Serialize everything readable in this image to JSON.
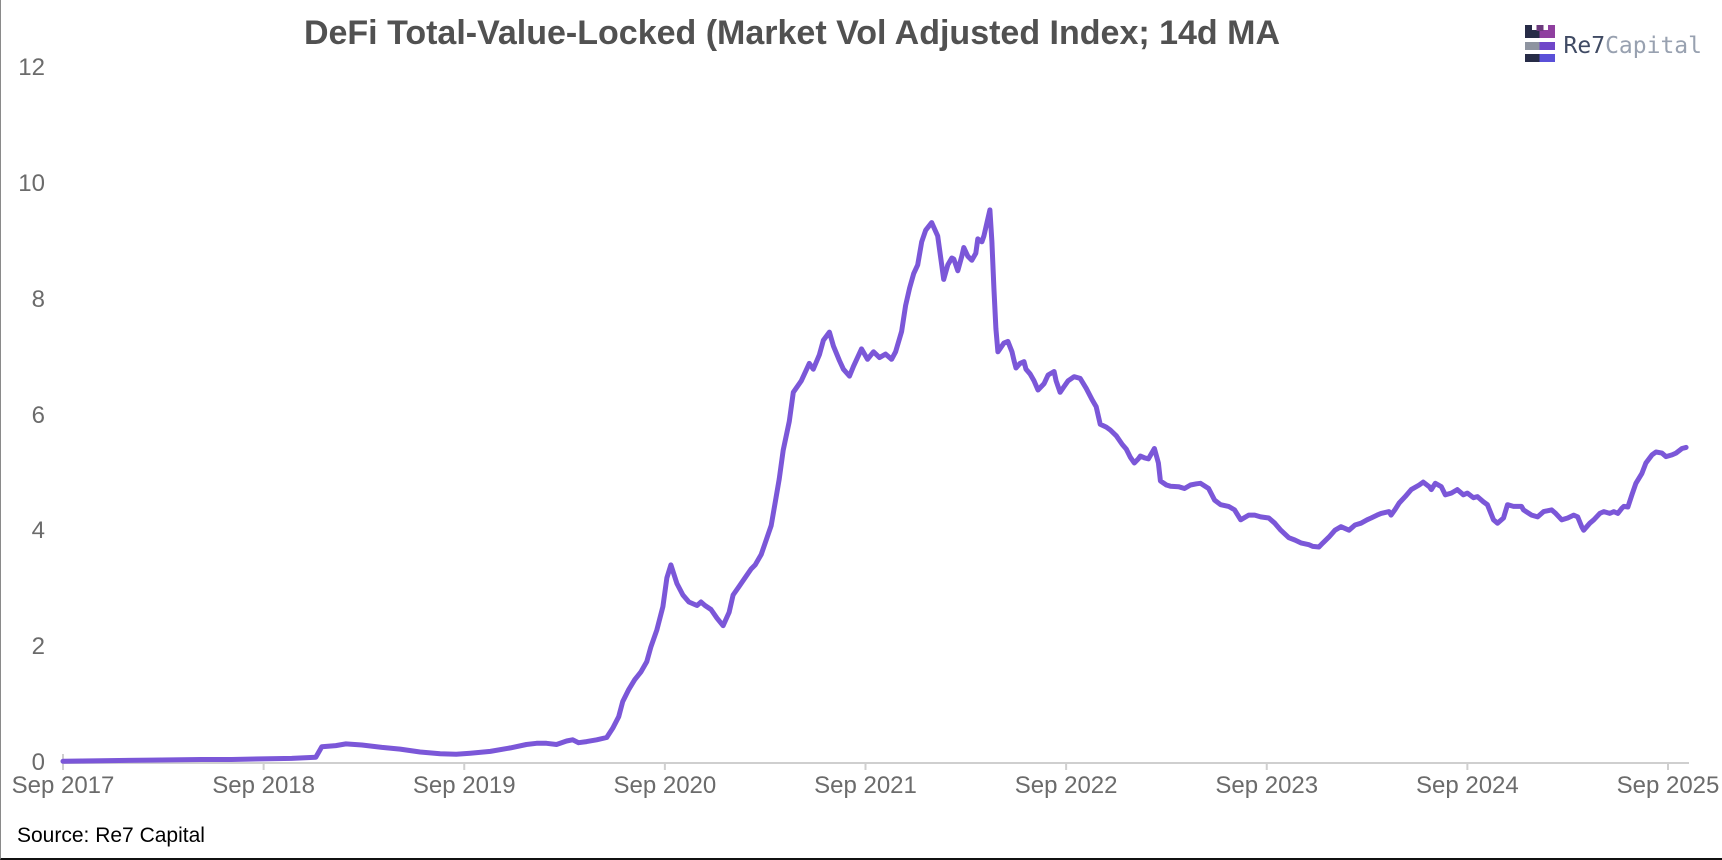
{
  "page": {
    "background": "#ffffff",
    "border_bottom_color": "#111111",
    "border_left_color": "#8a8a8a"
  },
  "header": {
    "title": "DeFi Total-Value-Locked (Market Vol Adjusted Index; 14d MA",
    "title_color": "#515151"
  },
  "logo": {
    "text_primary": "Re7",
    "text_secondary": "Capital",
    "primary_color": "#3f4a63",
    "secondary_color": "#98a1b0",
    "icon": {
      "name": "re7-capital-castle-bars-icon",
      "dark_navy": "#272c47",
      "gray": "#8e94a0",
      "magenta_purple": "#8f3f9f",
      "mid_purple": "#6f46c9",
      "indigo": "#5a50d8"
    }
  },
  "footer": {
    "source_label": "Source: Re7 Capital"
  },
  "chart_data": {
    "type": "line",
    "title": "DeFi Total-Value-Locked (Market Vol Adjusted Index; 14d MA",
    "series_name": "DeFi TVL market-vol-adjusted index (14d MA)",
    "line_color": "#7b57d8",
    "line_width": 5,
    "grid": false,
    "legend": false,
    "axis_color": "#cfcfcf",
    "x_axis": {
      "domain": [
        2017.75,
        2025.87
      ],
      "tick_values": [
        2017.75,
        2018.75,
        2019.75,
        2020.75,
        2021.75,
        2022.75,
        2023.75,
        2024.75,
        2025.75
      ],
      "tick_labels": [
        "Sep 2017",
        "Sep 2018",
        "Sep 2019",
        "Sep 2020",
        "Sep 2021",
        "Sep 2022",
        "Sep 2023",
        "Sep 2024",
        "Sep 2025"
      ]
    },
    "y_axis": {
      "domain": [
        0,
        12
      ],
      "tick_values": [
        0,
        2,
        4,
        6,
        8,
        10,
        12
      ]
    },
    "points": [
      [
        2017.75,
        0.03
      ],
      [
        2017.94,
        0.04
      ],
      [
        2018.19,
        0.05
      ],
      [
        2018.44,
        0.06
      ],
      [
        2018.59,
        0.06
      ],
      [
        2018.74,
        0.07
      ],
      [
        2018.89,
        0.08
      ],
      [
        2019.01,
        0.1
      ],
      [
        2019.04,
        0.28
      ],
      [
        2019.11,
        0.3
      ],
      [
        2019.16,
        0.33
      ],
      [
        2019.24,
        0.31
      ],
      [
        2019.34,
        0.27
      ],
      [
        2019.43,
        0.24
      ],
      [
        2019.53,
        0.19
      ],
      [
        2019.63,
        0.16
      ],
      [
        2019.71,
        0.15
      ],
      [
        2019.78,
        0.17
      ],
      [
        2019.88,
        0.2
      ],
      [
        2019.98,
        0.26
      ],
      [
        2020.06,
        0.32
      ],
      [
        2020.11,
        0.34
      ],
      [
        2020.16,
        0.34
      ],
      [
        2020.21,
        0.32
      ],
      [
        2020.26,
        0.38
      ],
      [
        2020.29,
        0.4
      ],
      [
        2020.32,
        0.35
      ],
      [
        2020.36,
        0.37
      ],
      [
        2020.41,
        0.4
      ],
      [
        2020.46,
        0.44
      ],
      [
        2020.49,
        0.6
      ],
      [
        2020.52,
        0.8
      ],
      [
        2020.54,
        1.06
      ],
      [
        2020.57,
        1.27
      ],
      [
        2020.6,
        1.44
      ],
      [
        2020.63,
        1.57
      ],
      [
        2020.66,
        1.75
      ],
      [
        2020.68,
        2.0
      ],
      [
        2020.71,
        2.3
      ],
      [
        2020.74,
        2.7
      ],
      [
        2020.76,
        3.2
      ],
      [
        2020.78,
        3.42
      ],
      [
        2020.81,
        3.1
      ],
      [
        2020.84,
        2.9
      ],
      [
        2020.87,
        2.78
      ],
      [
        2020.91,
        2.72
      ],
      [
        2020.93,
        2.78
      ],
      [
        2020.95,
        2.72
      ],
      [
        2020.98,
        2.65
      ],
      [
        2021.01,
        2.5
      ],
      [
        2021.04,
        2.37
      ],
      [
        2021.07,
        2.6
      ],
      [
        2021.09,
        2.9
      ],
      [
        2021.12,
        3.05
      ],
      [
        2021.15,
        3.2
      ],
      [
        2021.18,
        3.35
      ],
      [
        2021.2,
        3.42
      ],
      [
        2021.23,
        3.6
      ],
      [
        2021.25,
        3.8
      ],
      [
        2021.28,
        4.1
      ],
      [
        2021.3,
        4.5
      ],
      [
        2021.32,
        4.9
      ],
      [
        2021.34,
        5.4
      ],
      [
        2021.37,
        5.9
      ],
      [
        2021.39,
        6.4
      ],
      [
        2021.43,
        6.6
      ],
      [
        2021.47,
        6.9
      ],
      [
        2021.49,
        6.8
      ],
      [
        2021.52,
        7.05
      ],
      [
        2021.54,
        7.3
      ],
      [
        2021.57,
        7.44
      ],
      [
        2021.59,
        7.2
      ],
      [
        2021.62,
        6.95
      ],
      [
        2021.64,
        6.8
      ],
      [
        2021.67,
        6.68
      ],
      [
        2021.69,
        6.85
      ],
      [
        2021.73,
        7.15
      ],
      [
        2021.76,
        6.97
      ],
      [
        2021.79,
        7.1
      ],
      [
        2021.82,
        7.0
      ],
      [
        2021.85,
        7.06
      ],
      [
        2021.88,
        6.97
      ],
      [
        2021.9,
        7.1
      ],
      [
        2021.93,
        7.45
      ],
      [
        2021.95,
        7.9
      ],
      [
        2021.97,
        8.2
      ],
      [
        2021.99,
        8.45
      ],
      [
        2022.01,
        8.6
      ],
      [
        2022.03,
        9.0
      ],
      [
        2022.05,
        9.2
      ],
      [
        2022.08,
        9.33
      ],
      [
        2022.11,
        9.1
      ],
      [
        2022.13,
        8.6
      ],
      [
        2022.14,
        8.35
      ],
      [
        2022.16,
        8.6
      ],
      [
        2022.18,
        8.72
      ],
      [
        2022.19,
        8.7
      ],
      [
        2022.21,
        8.5
      ],
      [
        2022.23,
        8.75
      ],
      [
        2022.24,
        8.9
      ],
      [
        2022.26,
        8.75
      ],
      [
        2022.28,
        8.68
      ],
      [
        2022.3,
        8.8
      ],
      [
        2022.31,
        9.05
      ],
      [
        2022.33,
        9.0
      ],
      [
        2022.34,
        9.1
      ],
      [
        2022.36,
        9.4
      ],
      [
        2022.37,
        9.55
      ],
      [
        2022.38,
        9.0
      ],
      [
        2022.39,
        8.2
      ],
      [
        2022.4,
        7.5
      ],
      [
        2022.41,
        7.1
      ],
      [
        2022.42,
        7.15
      ],
      [
        2022.44,
        7.25
      ],
      [
        2022.46,
        7.28
      ],
      [
        2022.48,
        7.1
      ],
      [
        2022.49,
        6.95
      ],
      [
        2022.5,
        6.82
      ],
      [
        2022.52,
        6.9
      ],
      [
        2022.54,
        6.93
      ],
      [
        2022.55,
        6.8
      ],
      [
        2022.57,
        6.72
      ],
      [
        2022.59,
        6.6
      ],
      [
        2022.61,
        6.44
      ],
      [
        2022.64,
        6.55
      ],
      [
        2022.66,
        6.7
      ],
      [
        2022.69,
        6.76
      ],
      [
        2022.7,
        6.6
      ],
      [
        2022.72,
        6.4
      ],
      [
        2022.74,
        6.5
      ],
      [
        2022.76,
        6.6
      ],
      [
        2022.79,
        6.67
      ],
      [
        2022.82,
        6.64
      ],
      [
        2022.85,
        6.47
      ],
      [
        2022.88,
        6.27
      ],
      [
        2022.9,
        6.15
      ],
      [
        2022.92,
        5.85
      ],
      [
        2022.95,
        5.8
      ],
      [
        2022.97,
        5.75
      ],
      [
        2023.0,
        5.65
      ],
      [
        2023.03,
        5.5
      ],
      [
        2023.05,
        5.42
      ],
      [
        2023.07,
        5.28
      ],
      [
        2023.09,
        5.18
      ],
      [
        2023.11,
        5.25
      ],
      [
        2023.12,
        5.3
      ],
      [
        2023.14,
        5.27
      ],
      [
        2023.16,
        5.25
      ],
      [
        2023.19,
        5.43
      ],
      [
        2023.21,
        5.18
      ],
      [
        2023.22,
        4.87
      ],
      [
        2023.25,
        4.8
      ],
      [
        2023.27,
        4.78
      ],
      [
        2023.31,
        4.77
      ],
      [
        2023.34,
        4.74
      ],
      [
        2023.37,
        4.8
      ],
      [
        2023.4,
        4.82
      ],
      [
        2023.42,
        4.83
      ],
      [
        2023.46,
        4.74
      ],
      [
        2023.49,
        4.54
      ],
      [
        2023.52,
        4.46
      ],
      [
        2023.56,
        4.43
      ],
      [
        2023.59,
        4.37
      ],
      [
        2023.62,
        4.2
      ],
      [
        2023.66,
        4.28
      ],
      [
        2023.69,
        4.28
      ],
      [
        2023.72,
        4.25
      ],
      [
        2023.76,
        4.23
      ],
      [
        2023.79,
        4.14
      ],
      [
        2023.82,
        4.02
      ],
      [
        2023.86,
        3.89
      ],
      [
        2023.89,
        3.85
      ],
      [
        2023.92,
        3.8
      ],
      [
        2023.96,
        3.77
      ],
      [
        2023.98,
        3.74
      ],
      [
        2024.01,
        3.73
      ],
      [
        2024.03,
        3.8
      ],
      [
        2024.06,
        3.9
      ],
      [
        2024.09,
        4.02
      ],
      [
        2024.12,
        4.08
      ],
      [
        2024.16,
        4.02
      ],
      [
        2024.19,
        4.11
      ],
      [
        2024.22,
        4.14
      ],
      [
        2024.25,
        4.2
      ],
      [
        2024.27,
        4.23
      ],
      [
        2024.3,
        4.28
      ],
      [
        2024.32,
        4.31
      ],
      [
        2024.36,
        4.34
      ],
      [
        2024.37,
        4.28
      ],
      [
        2024.39,
        4.38
      ],
      [
        2024.41,
        4.49
      ],
      [
        2024.44,
        4.6
      ],
      [
        2024.47,
        4.72
      ],
      [
        2024.51,
        4.8
      ],
      [
        2024.53,
        4.85
      ],
      [
        2024.56,
        4.77
      ],
      [
        2024.57,
        4.72
      ],
      [
        2024.59,
        4.83
      ],
      [
        2024.62,
        4.77
      ],
      [
        2024.64,
        4.63
      ],
      [
        2024.67,
        4.66
      ],
      [
        2024.7,
        4.72
      ],
      [
        2024.73,
        4.63
      ],
      [
        2024.75,
        4.66
      ],
      [
        2024.78,
        4.58
      ],
      [
        2024.8,
        4.6
      ],
      [
        2024.83,
        4.51
      ],
      [
        2024.85,
        4.46
      ],
      [
        2024.88,
        4.2
      ],
      [
        2024.9,
        4.14
      ],
      [
        2024.93,
        4.23
      ],
      [
        2024.95,
        4.46
      ],
      [
        2024.98,
        4.43
      ],
      [
        2025.02,
        4.43
      ],
      [
        2025.03,
        4.37
      ],
      [
        2025.07,
        4.28
      ],
      [
        2025.1,
        4.25
      ],
      [
        2025.13,
        4.34
      ],
      [
        2025.17,
        4.37
      ],
      [
        2025.19,
        4.31
      ],
      [
        2025.22,
        4.2
      ],
      [
        2025.25,
        4.23
      ],
      [
        2025.28,
        4.28
      ],
      [
        2025.3,
        4.25
      ],
      [
        2025.32,
        4.08
      ],
      [
        2025.33,
        4.02
      ],
      [
        2025.36,
        4.14
      ],
      [
        2025.38,
        4.2
      ],
      [
        2025.41,
        4.31
      ],
      [
        2025.43,
        4.34
      ],
      [
        2025.46,
        4.31
      ],
      [
        2025.48,
        4.34
      ],
      [
        2025.5,
        4.31
      ],
      [
        2025.52,
        4.4
      ],
      [
        2025.53,
        4.43
      ],
      [
        2025.55,
        4.42
      ],
      [
        2025.57,
        4.63
      ],
      [
        2025.59,
        4.83
      ],
      [
        2025.62,
        5.0
      ],
      [
        2025.64,
        5.18
      ],
      [
        2025.67,
        5.32
      ],
      [
        2025.69,
        5.37
      ],
      [
        2025.72,
        5.35
      ],
      [
        2025.74,
        5.29
      ],
      [
        2025.77,
        5.32
      ],
      [
        2025.79,
        5.35
      ],
      [
        2025.82,
        5.43
      ],
      [
        2025.84,
        5.45
      ]
    ]
  }
}
